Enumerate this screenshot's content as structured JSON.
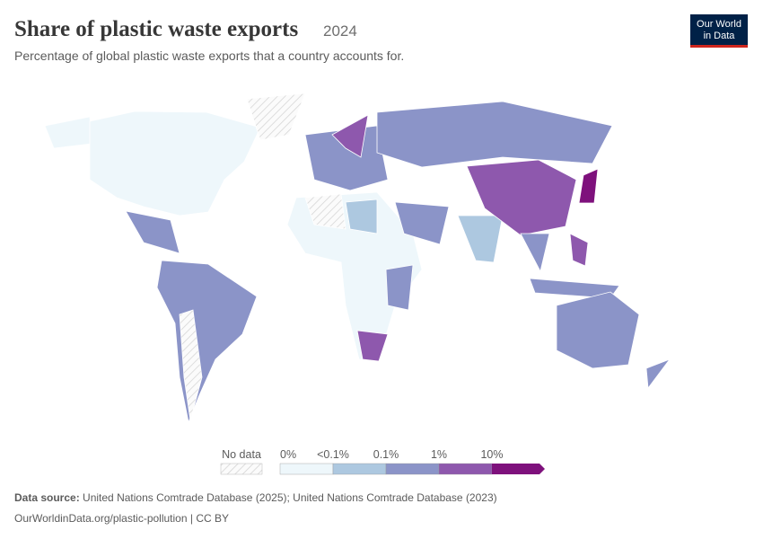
{
  "header": {
    "title": "Share of plastic waste exports",
    "year": "2024",
    "subtitle": "Percentage of global plastic waste exports that a country accounts for."
  },
  "logo": {
    "lines": [
      "Our World",
      "in Data"
    ]
  },
  "legend": {
    "no_data": "No data",
    "labels": [
      "0%",
      "<0.1%",
      "0.1%",
      "1%",
      "10%"
    ],
    "colors": [
      "#eef7fb",
      "#adc8e0",
      "#8b94c8",
      "#8e58ad",
      "#7e117c"
    ]
  },
  "footer": {
    "source_label": "Data source:",
    "source": "United Nations Comtrade Database (2025); United Nations Comtrade Database (2023)",
    "url": "OurWorldinData.org/plastic-pollution | CC BY"
  }
}
